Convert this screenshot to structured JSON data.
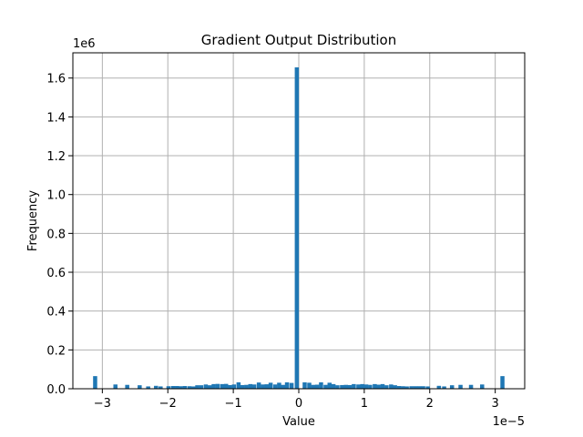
{
  "chart_data": {
    "type": "bar",
    "title": "Gradient Output Distribution",
    "xlabel": "Value",
    "ylabel": "Frequency",
    "x_scale_label": "1e−5",
    "y_scale_label": "1e6",
    "xlim": [
      -3.45,
      3.45
    ],
    "ylim": [
      0,
      1.73
    ],
    "xticks": [
      -3,
      -2,
      -1,
      0,
      1,
      2,
      3
    ],
    "xtick_labels": [
      "−3",
      "−2",
      "−1",
      "0",
      "1",
      "2",
      "3"
    ],
    "yticks": [
      0.0,
      0.2,
      0.4,
      0.6,
      0.8,
      1.0,
      1.2,
      1.4,
      1.6
    ],
    "ytick_labels": [
      "0.0",
      "0.2",
      "0.4",
      "0.6",
      "0.8",
      "1.0",
      "1.2",
      "1.4",
      "1.6"
    ],
    "grid": true,
    "bar_color": "#1f77b4",
    "bin_width": 0.0628,
    "bins_x": [
      -3.11,
      -2.8,
      -2.62,
      -2.43,
      -2.3,
      -2.18,
      -2.11,
      -1.99,
      -1.92,
      -1.86,
      -1.8,
      -1.74,
      -1.67,
      -1.61,
      -1.55,
      -1.49,
      -1.42,
      -1.36,
      -1.3,
      -1.24,
      -1.17,
      -1.11,
      -1.05,
      -0.99,
      -0.92,
      -0.86,
      -0.8,
      -0.74,
      -0.68,
      -0.61,
      -0.55,
      -0.49,
      -0.43,
      -0.36,
      -0.3,
      -0.24,
      -0.18,
      -0.11,
      -0.03,
      0.09,
      0.16,
      0.22,
      0.28,
      0.34,
      0.41,
      0.47,
      0.53,
      0.59,
      0.66,
      0.72,
      0.78,
      0.84,
      0.91,
      0.97,
      1.03,
      1.09,
      1.16,
      1.22,
      1.28,
      1.34,
      1.41,
      1.47,
      1.53,
      1.59,
      1.65,
      1.72,
      1.78,
      1.84,
      1.9,
      1.97,
      2.14,
      2.22,
      2.34,
      2.47,
      2.63,
      2.8,
      3.11
    ],
    "values": [
      0.065,
      0.022,
      0.02,
      0.018,
      0.012,
      0.015,
      0.012,
      0.013,
      0.014,
      0.014,
      0.013,
      0.014,
      0.013,
      0.012,
      0.018,
      0.018,
      0.022,
      0.018,
      0.024,
      0.025,
      0.024,
      0.025,
      0.019,
      0.022,
      0.033,
      0.019,
      0.02,
      0.024,
      0.022,
      0.032,
      0.022,
      0.023,
      0.031,
      0.022,
      0.031,
      0.02,
      0.033,
      0.03,
      1.655,
      0.033,
      0.031,
      0.02,
      0.021,
      0.033,
      0.02,
      0.031,
      0.024,
      0.018,
      0.019,
      0.02,
      0.019,
      0.024,
      0.022,
      0.024,
      0.022,
      0.02,
      0.024,
      0.021,
      0.024,
      0.018,
      0.022,
      0.018,
      0.014,
      0.013,
      0.012,
      0.013,
      0.013,
      0.013,
      0.013,
      0.012,
      0.015,
      0.012,
      0.018,
      0.02,
      0.02,
      0.022,
      0.065
    ]
  }
}
